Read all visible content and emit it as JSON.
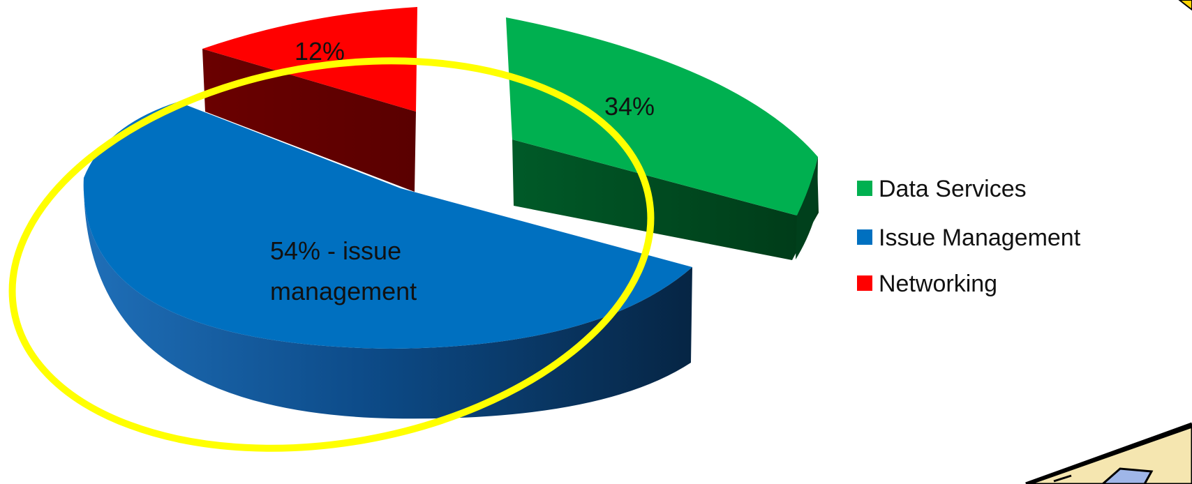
{
  "chart_data": {
    "type": "pie",
    "style": "3d-exploded",
    "slices": [
      {
        "name": "Data Services",
        "value": 34,
        "label": "34%",
        "color": "#00b050",
        "side_color": "#004d22"
      },
      {
        "name": "Issue Management",
        "value": 54,
        "label_lines": [
          "54% - issue",
          "management"
        ],
        "color": "#0070c0",
        "side_color": "#0a3f6e"
      },
      {
        "name": "Networking",
        "value": 12,
        "label": "12%",
        "color": "#ff0000",
        "side_color": "#6b0000"
      }
    ],
    "legend": {
      "position": "right",
      "items": [
        "Data Services",
        "Issue Management",
        "Networking"
      ]
    },
    "highlight": {
      "target": "Issue Management",
      "shape": "ellipse",
      "color": "#ffff00"
    }
  }
}
